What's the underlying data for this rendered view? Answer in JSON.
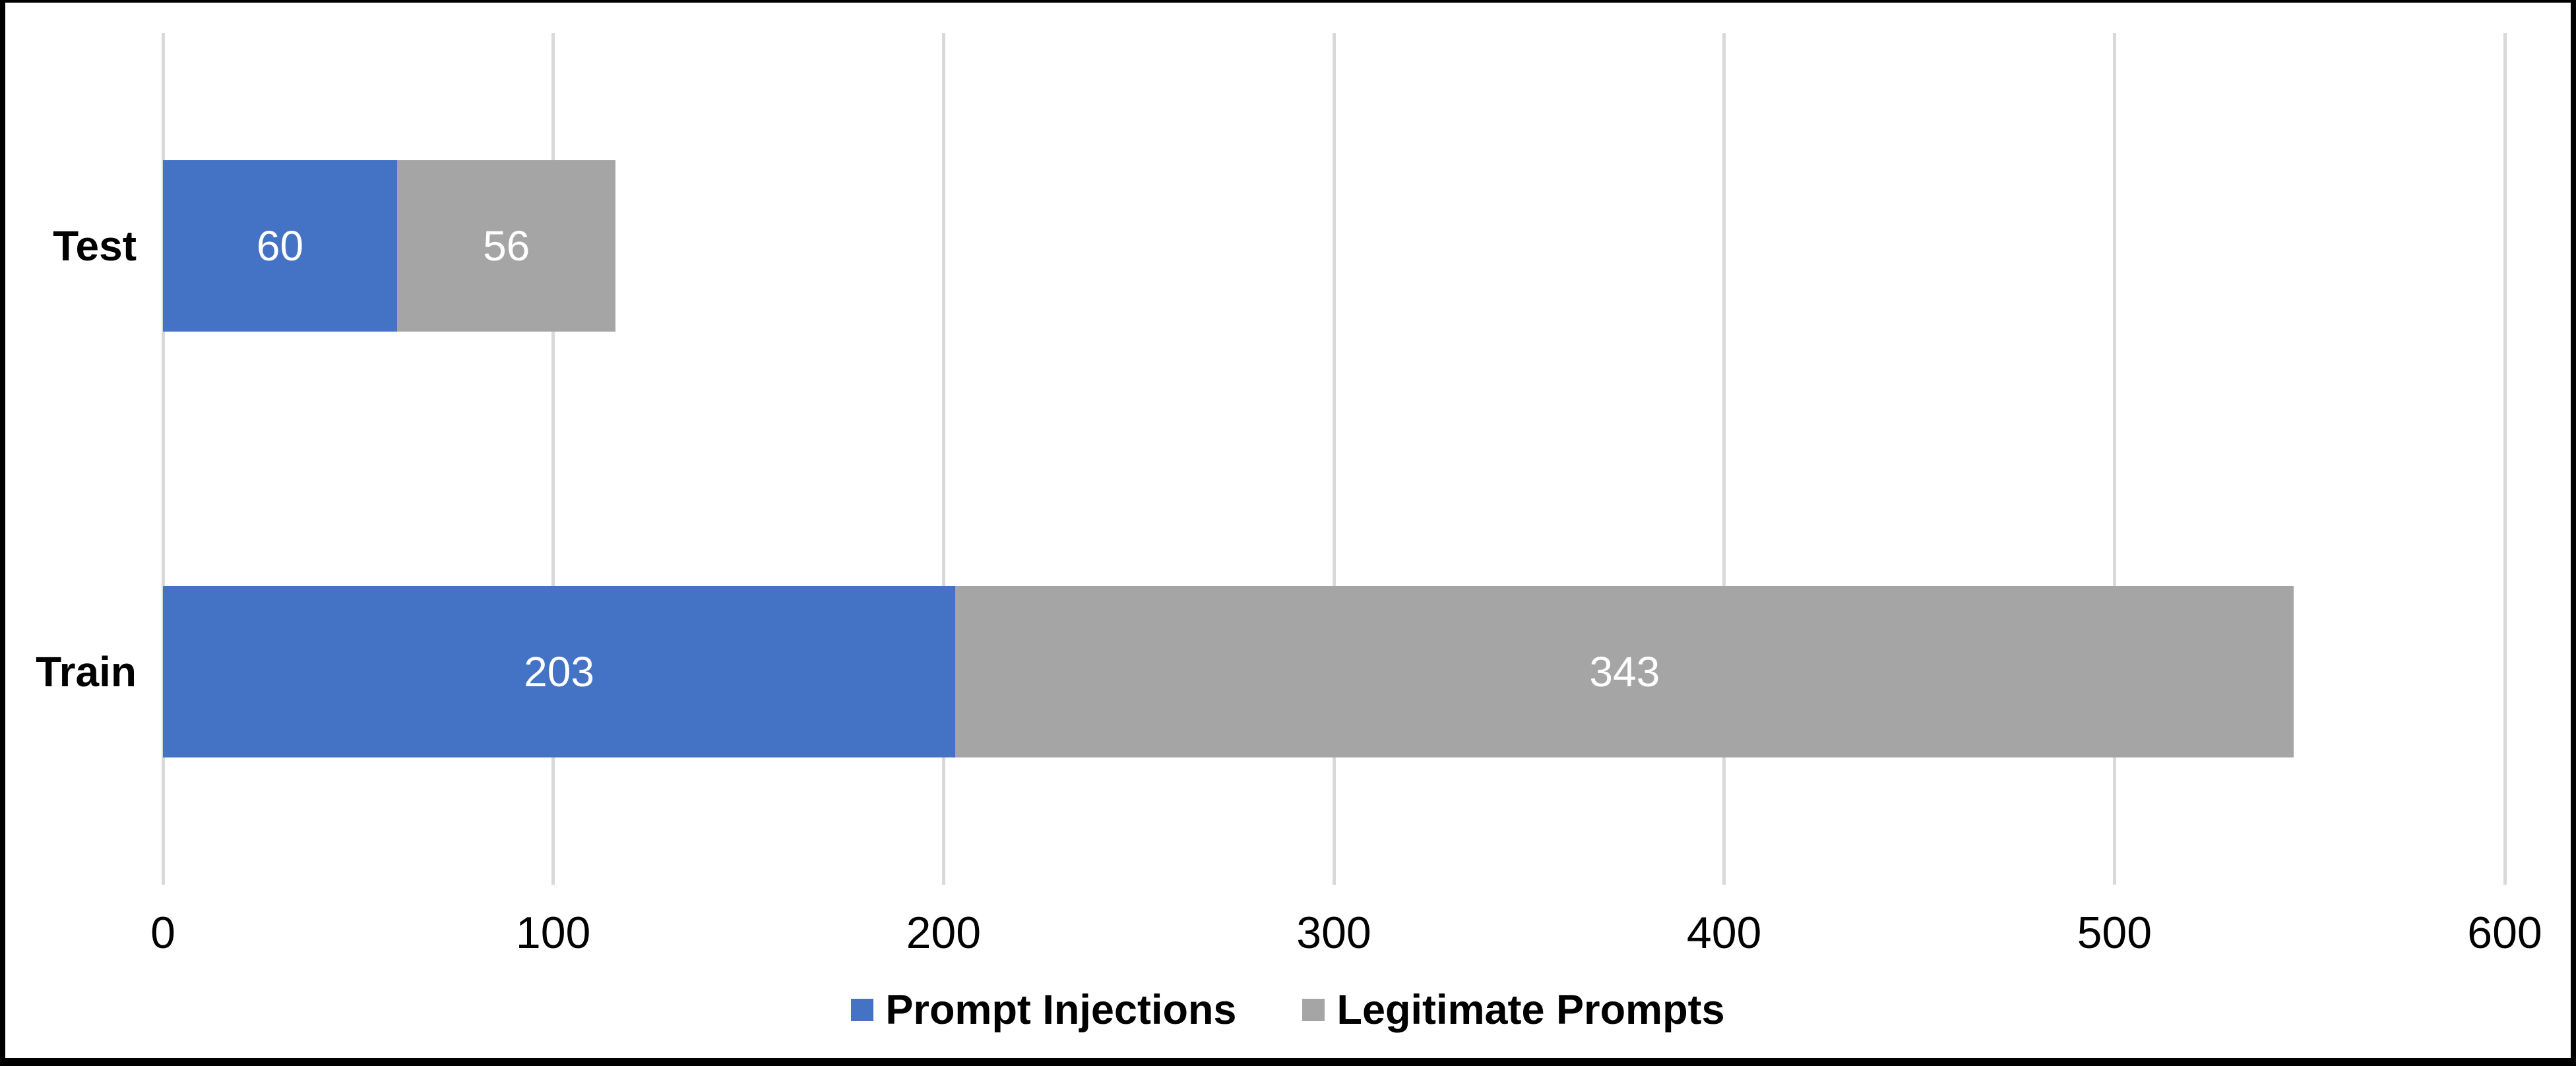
{
  "chart_data": {
    "type": "bar",
    "orientation": "horizontal",
    "stacked": true,
    "title": "",
    "xlabel": "",
    "ylabel": "",
    "categories": [
      "Test",
      "Train"
    ],
    "series": [
      {
        "name": "Prompt Injections",
        "color": "#4472C4",
        "values": [
          60,
          203
        ]
      },
      {
        "name": "Legitimate Prompts",
        "color": "#A5A5A5",
        "values": [
          56,
          343
        ]
      }
    ],
    "stack_totals": [
      116,
      546
    ],
    "xlim": [
      0,
      600
    ],
    "xticks": [
      "0",
      "100",
      "200",
      "300",
      "400",
      "500",
      "600"
    ],
    "grid": "vertical gridlines only",
    "gridline_color": "#D9D9D9",
    "data_label_color": "#FFFFFF",
    "text_color": "#000000",
    "background_color": "#FFFFFF",
    "frame_border_color": "#000000",
    "legend_position": "bottom-center"
  }
}
